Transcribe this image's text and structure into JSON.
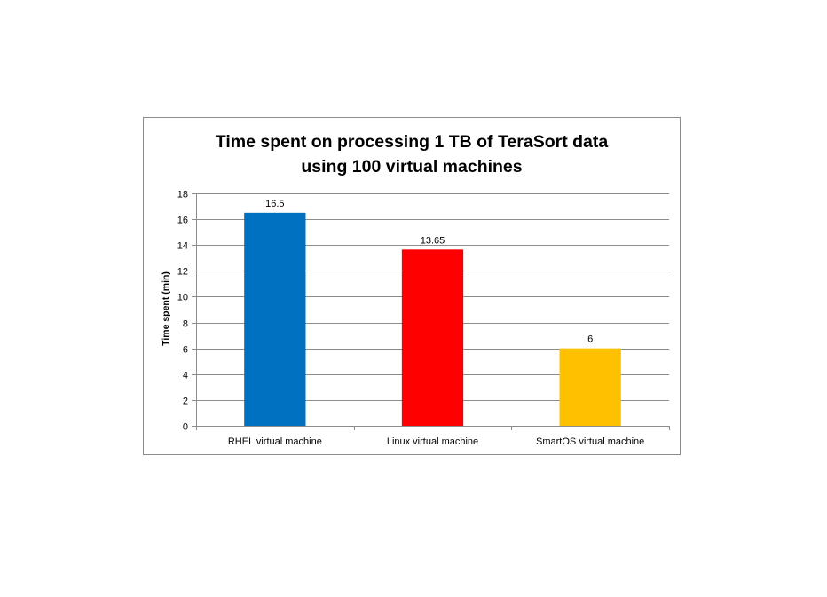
{
  "chart_data": {
    "type": "bar",
    "title_lines": [
      "Time spent on processing 1 TB of TeraSort data",
      "using 100 virtual machines"
    ],
    "xlabel": "",
    "ylabel": "Time spent (min)",
    "ylim": [
      0,
      18
    ],
    "y_ticks": [
      0,
      2,
      4,
      6,
      8,
      10,
      12,
      14,
      16,
      18
    ],
    "categories": [
      "RHEL virtual machine",
      "Linux virtual machine",
      "SmartOS virtual machine"
    ],
    "values": [
      16.5,
      13.65,
      6
    ],
    "data_labels": [
      "16.5",
      "13.65",
      "6"
    ],
    "bar_colors": [
      "#0070c0",
      "#ff0000",
      "#ffc000"
    ],
    "grid": true,
    "legend": "none"
  }
}
